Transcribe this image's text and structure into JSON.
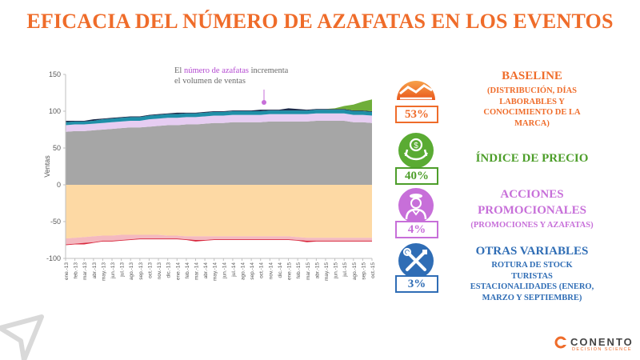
{
  "title": "EFICACIA DEL NÚMERO DE AZAFATAS EN LOS EVENTOS",
  "annotation": {
    "prefix": "El ",
    "highlight": "número de azafatas",
    "rest": " incrementa el volumen de ventas"
  },
  "colors": {
    "title": "#ef6c2a",
    "baseline": "#a6a6a6",
    "promo": "#e6cdf2",
    "price": "#1f8fa8",
    "top_navy": "#1a2a4a",
    "green": "#6fae3a",
    "other_neg": "#fdd9a4",
    "pink_neg": "#f4b9c0",
    "red_neg": "#d8283e",
    "orange": "#ef6c2a",
    "green_driver": "#4d9e2a",
    "purple": "#c76fd9",
    "blue": "#2f6db5"
  },
  "chart_data": {
    "type": "area",
    "ylabel": "Ventas",
    "ylim": [
      -100,
      150
    ],
    "yticks": [
      -100,
      -50,
      0,
      50,
      100,
      150
    ],
    "grid": false,
    "x": [
      "ene.-13",
      "feb.-13",
      "mar.-13",
      "abr.-13",
      "may.-13",
      "jun.-13",
      "jul.-13",
      "ago.-13",
      "sep.-13",
      "oct.-13",
      "nov.-13",
      "dic.-13",
      "ene.-14",
      "feb.-14",
      "mar.-14",
      "abr.-14",
      "may.-14",
      "jun.-14",
      "jul.-14",
      "ago.-14",
      "sep.-14",
      "oct.-14",
      "nov.-14",
      "dic.-14",
      "ene.-15",
      "feb.-15",
      "mar.-15",
      "abr.-15",
      "may.-15",
      "jun.-15",
      "jul.-15",
      "ago.-15",
      "sep.-15",
      "oct.-15"
    ],
    "series": [
      {
        "key": "baseline",
        "values": [
          72,
          73,
          73,
          74,
          75,
          76,
          77,
          78,
          78,
          79,
          80,
          81,
          81,
          82,
          82,
          83,
          84,
          84,
          85,
          85,
          85,
          85,
          86,
          86,
          86,
          86,
          86,
          87,
          87,
          87,
          87,
          85,
          85,
          84
        ]
      },
      {
        "key": "promo",
        "values": [
          9,
          9,
          9,
          9,
          9,
          9,
          9,
          9,
          9,
          10,
          10,
          10,
          10,
          10,
          10,
          10,
          10,
          10,
          10,
          10,
          10,
          10,
          10,
          10,
          10,
          10,
          10,
          10,
          10,
          10,
          10,
          10,
          10,
          10
        ]
      },
      {
        "key": "price",
        "values": [
          4,
          4,
          4,
          4,
          5,
          5,
          5,
          5,
          5,
          5,
          5,
          5,
          5,
          5,
          5,
          5,
          5,
          5,
          5,
          5,
          5,
          5,
          5,
          5,
          5,
          5,
          5,
          5,
          5,
          5,
          5,
          5,
          5,
          5
        ]
      },
      {
        "key": "top_navy",
        "values": [
          2,
          1,
          1,
          2,
          1,
          1,
          1,
          1,
          1,
          1,
          1,
          1,
          2,
          1,
          1,
          1,
          1,
          1,
          1,
          1,
          1,
          2,
          1,
          1,
          3,
          2,
          1,
          1,
          1,
          1,
          1,
          1,
          1,
          1
        ]
      },
      {
        "key": "green",
        "values": [
          0,
          0,
          0,
          0,
          0,
          0,
          0,
          0,
          0,
          0,
          0,
          0,
          0,
          0,
          0,
          0,
          0,
          0,
          0,
          0,
          0,
          0,
          0,
          0,
          0,
          0,
          0,
          0,
          0,
          1,
          4,
          8,
          12,
          16
        ]
      },
      {
        "key": "other_neg",
        "values": [
          -73,
          -72,
          -71,
          -70,
          -69,
          -69,
          -68,
          -68,
          -68,
          -68,
          -68,
          -69,
          -69,
          -70,
          -70,
          -70,
          -70,
          -70,
          -70,
          -70,
          -70,
          -70,
          -70,
          -70,
          -70,
          -71,
          -72,
          -72,
          -72,
          -72,
          -72,
          -72,
          -72,
          -72
        ]
      },
      {
        "key": "pink_neg",
        "values": [
          -8,
          -8,
          -8,
          -8,
          -7,
          -7,
          -7,
          -6,
          -5,
          -5,
          -5,
          -4,
          -4,
          -4,
          -5,
          -5,
          -4,
          -4,
          -4,
          -4,
          -4,
          -4,
          -4,
          -4,
          -4,
          -4,
          -4,
          -4,
          -4,
          -4,
          -4,
          -4,
          -4,
          -4
        ]
      },
      {
        "key": "red_neg",
        "values": [
          -1,
          -1,
          -2,
          -1,
          -1,
          -1,
          -1,
          -1,
          -1,
          -1,
          -1,
          -1,
          -1,
          -1,
          -2,
          -1,
          -1,
          -1,
          -1,
          -1,
          -1,
          -1,
          -1,
          -1,
          -1,
          -1,
          -2,
          -1,
          -1,
          -1,
          -1,
          -1,
          -1,
          -1
        ]
      }
    ]
  },
  "drivers": [
    {
      "key": "baseline",
      "pct": "53%",
      "title": [
        "BASELINE"
      ],
      "sub": [
        "(DISTRIBUCIÓN, DÍAS",
        "LABORABLES Y",
        "CONOCIMIENTO DE LA",
        "MARCA)"
      ],
      "icon": "baseline-chart-icon",
      "color": "#ef6c2a"
    },
    {
      "key": "price",
      "pct": "40%",
      "title": [
        "ÍNDICE DE PRECIO"
      ],
      "sub": [],
      "icon": "money-hands-icon",
      "color": "#4d9e2a"
    },
    {
      "key": "promo",
      "pct": "4%",
      "title": [
        "ACCIONES",
        "PROMOCIONALES"
      ],
      "sub": [
        "(PROMOCIONES Y AZAFATAS)"
      ],
      "icon": "hostess-icon",
      "color": "#c76fd9"
    },
    {
      "key": "other",
      "pct": "3%",
      "title": [
        "OTRAS VARIABLES"
      ],
      "sub": [
        "ROTURA DE STOCK",
        "TURISTAS",
        "ESTACIONALIDADES (ENERO,",
        "MARZO Y SEPTIEMBRE)"
      ],
      "icon": "tools-icon",
      "color": "#2f6db5"
    }
  ],
  "logo": {
    "name": "CONENTO",
    "tagline": "DECISION SCIENCE"
  }
}
